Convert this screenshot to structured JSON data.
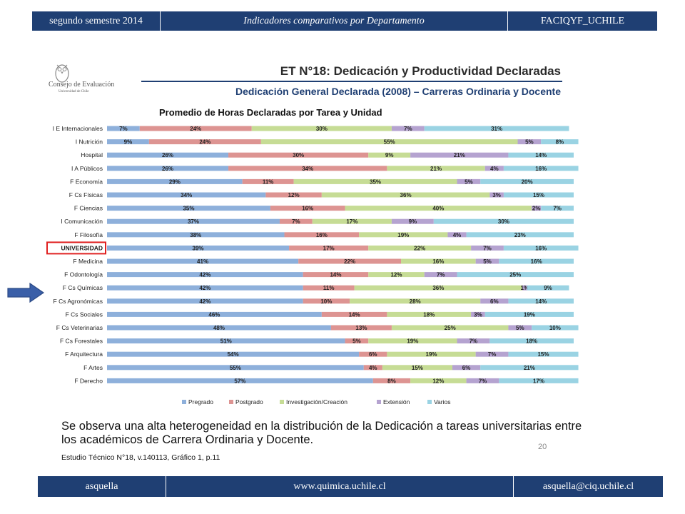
{
  "header": {
    "left": "segundo semestre 2014",
    "center": "Indicadores comparativos por Departamento",
    "right": "FACIQYF_UCHILE"
  },
  "footer": {
    "left": "asquella",
    "center": "www.quimica.uchile.cl",
    "right": "asquella@ciq.uchile.cl"
  },
  "logo": {
    "line1": "Consejo de Evaluación",
    "line2": "Universidad de Chile"
  },
  "slide": {
    "title": "ET N°18: Dedicación y Productividad Declaradas",
    "subtitle": "Dedicación General Declarada (2008) – Carreras Ordinaria y Docente",
    "observation": "Se observa una alta heterogeneidad en la distribución de la Dedicación a tareas universitarias entre los académicos de Carrera Ordinaria y Docente.",
    "citation": "Estudio Técnico N°18, v.140113, Gráfico 1, p.11",
    "page_number": "20"
  },
  "colors": {
    "header_bg": "#1f3f73",
    "highlight_box": "#e02020",
    "arrow": "#3a5fa8"
  },
  "chart_data": {
    "type": "bar",
    "orientation": "horizontal-stacked-100",
    "title": "Promedio de Horas Declaradas por Tarea y Unidad",
    "categories": [
      "I E Internacionales",
      "I Nutrición",
      "Hospital",
      "I A Públicos",
      "F Economía",
      "F Cs Físicas",
      "F Ciencias",
      "I Comunicación",
      "F Filosofía",
      "UNIVERSIDAD",
      "F Medicina",
      "F Odontología",
      "F Cs Químicas",
      "F Cs Agronómicas",
      "F Cs Sociales",
      "F Cs Veterinarias",
      "F Cs Forestales",
      "F Arquitectura",
      "F Artes",
      "F Derecho"
    ],
    "highlighted_category": "UNIVERSIDAD",
    "arrow_category": "F Cs Químicas",
    "series": [
      {
        "name": "Pregrado",
        "color": "#8eb0db",
        "values": [
          7,
          9,
          26,
          26,
          29,
          34,
          35,
          37,
          38,
          39,
          41,
          42,
          42,
          42,
          46,
          48,
          51,
          54,
          55,
          57
        ]
      },
      {
        "name": "Postgrado",
        "color": "#dd9492",
        "values": [
          24,
          24,
          30,
          34,
          11,
          12,
          16,
          7,
          16,
          17,
          22,
          14,
          11,
          10,
          14,
          13,
          5,
          6,
          4,
          8
        ]
      },
      {
        "name": "Investigación/Creación",
        "color": "#c6dc95",
        "values": [
          30,
          55,
          9,
          21,
          35,
          36,
          40,
          17,
          19,
          22,
          16,
          12,
          36,
          28,
          18,
          25,
          19,
          19,
          15,
          12
        ]
      },
      {
        "name": "Extensión",
        "color": "#b5a3d0",
        "values": [
          7,
          5,
          21,
          4,
          5,
          3,
          2,
          9,
          4,
          7,
          5,
          7,
          1,
          6,
          3,
          5,
          7,
          7,
          6,
          7
        ]
      },
      {
        "name": "Varios",
        "color": "#9ad3e3",
        "values": [
          31,
          8,
          14,
          16,
          20,
          15,
          7,
          30,
          23,
          16,
          16,
          25,
          9,
          14,
          19,
          10,
          18,
          15,
          21,
          17
        ]
      }
    ],
    "legend_position": "bottom",
    "xlim": [
      0,
      100
    ],
    "unit": "%"
  }
}
